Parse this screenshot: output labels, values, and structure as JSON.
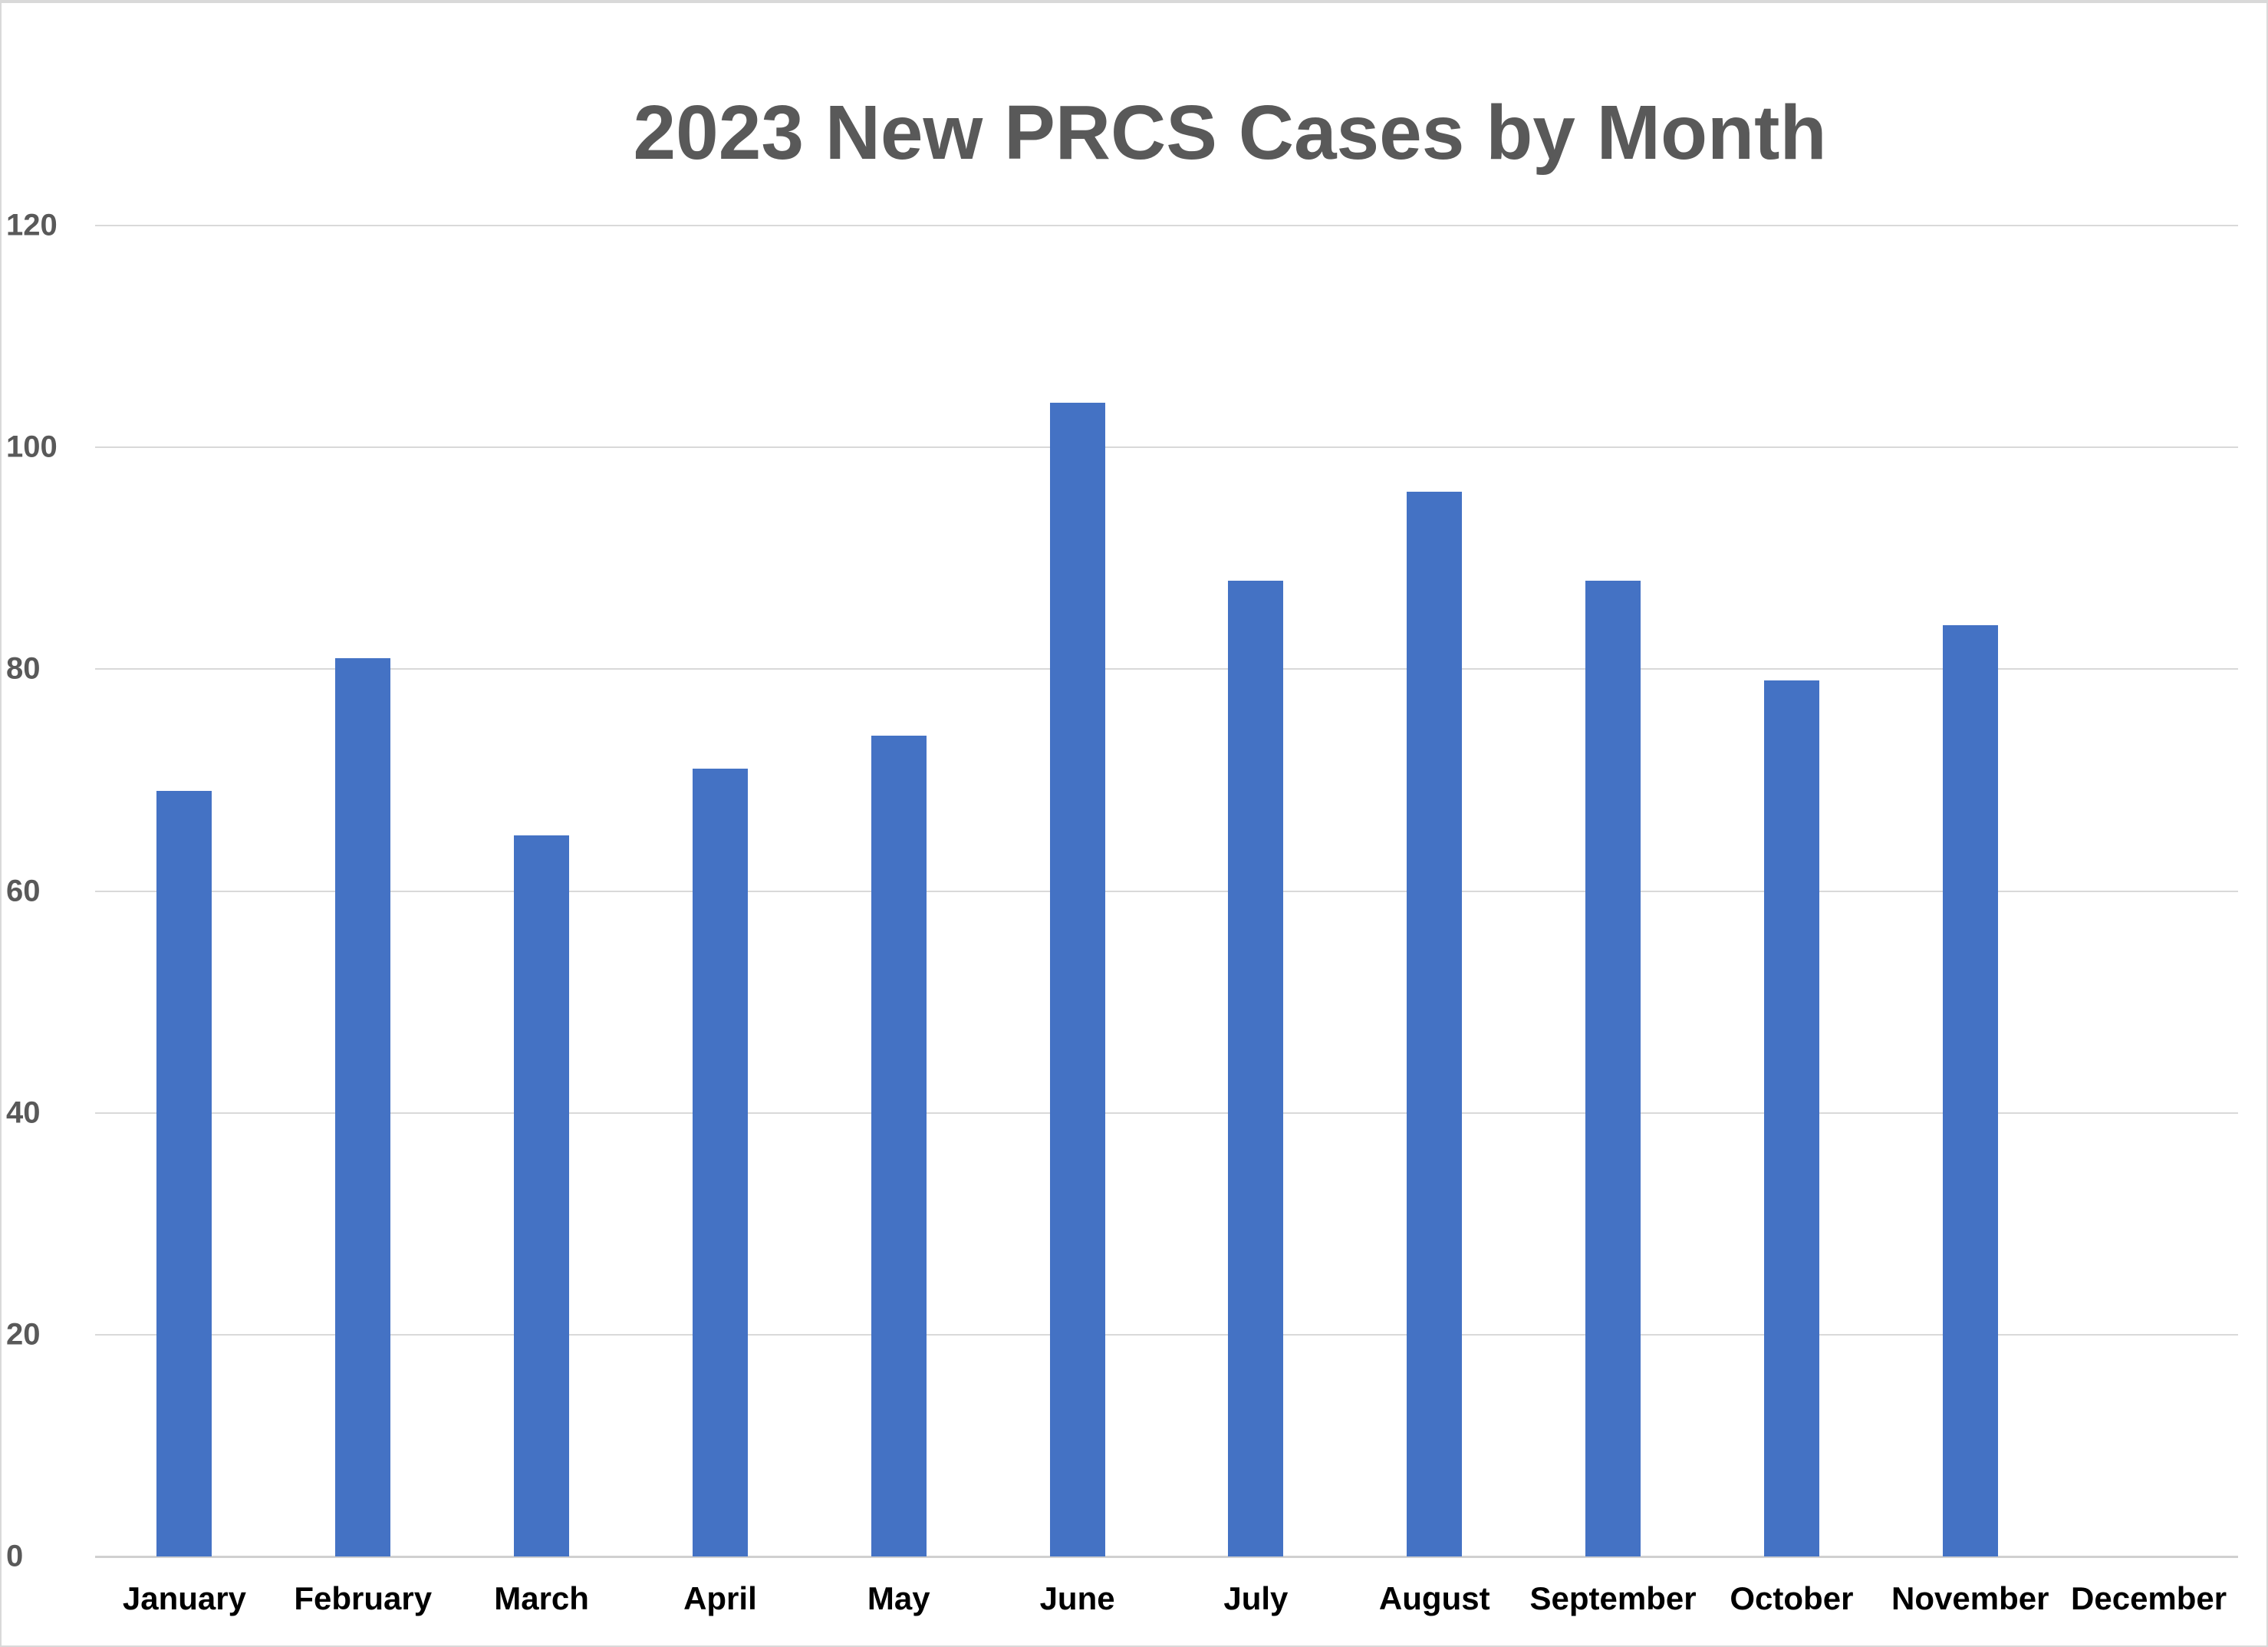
{
  "chart_data": {
    "type": "bar",
    "title": "2023 New PRCS Cases by Month",
    "xlabel": "",
    "ylabel": "",
    "categories": [
      "January",
      "February",
      "March",
      "April",
      "May",
      "June",
      "July",
      "August",
      "September",
      "October",
      "November",
      "December"
    ],
    "values": [
      69,
      81,
      65,
      71,
      74,
      104,
      88,
      96,
      88,
      79,
      84,
      null
    ],
    "ylim": [
      0,
      120
    ],
    "yticks": [
      0,
      20,
      40,
      60,
      80,
      100,
      120
    ],
    "grid": true,
    "legend": "none",
    "bar_color": "#4472C4"
  },
  "title": "2023 New PRCS Cases by Month",
  "yticks": [
    "0",
    "20",
    "40",
    "60",
    "80",
    "100",
    "120"
  ],
  "xticks": [
    "January",
    "February",
    "March",
    "April",
    "May",
    "June",
    "July",
    "August",
    "September",
    "October",
    "November",
    "December"
  ]
}
